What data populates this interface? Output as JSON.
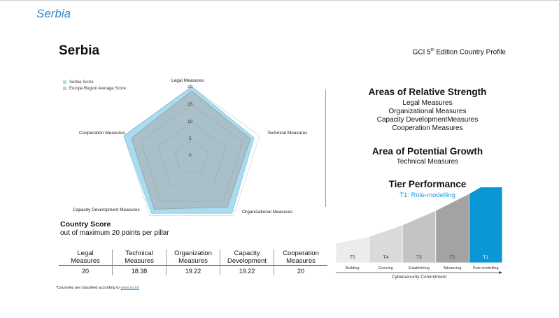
{
  "header": {
    "title": "Serbia"
  },
  "page_title": "Serbia",
  "profile": {
    "prefix": "GCI 5",
    "sup": "th",
    "suffix": " Edition Country Profile"
  },
  "chart_data": {
    "type": "radar",
    "axes": [
      "Legal Measures",
      "Technical Measures",
      "Organizational Measures",
      "Capacity Development Measures",
      "Cooperation Measures"
    ],
    "rlim": [
      0,
      20
    ],
    "ticks": [
      "0",
      "5",
      "10",
      "15",
      "20"
    ],
    "series": [
      {
        "name": "Serbia Score",
        "values": [
          20,
          18.38,
          19.22,
          19.22,
          20
        ],
        "color": "#a8dcf0"
      },
      {
        "name": "Europe Region Average Score",
        "values": [
          18.8,
          17.3,
          17.0,
          17.8,
          17.8
        ],
        "color": "#a9a9a9"
      }
    ]
  },
  "country_score": {
    "title": "Country Score",
    "subtitle": "out of maximum 20 points per pillar"
  },
  "score_table": {
    "headers": [
      [
        "Legal",
        "Measures"
      ],
      [
        "Technical",
        "Measures"
      ],
      [
        "Organization",
        "Measures"
      ],
      [
        "Capacity",
        "Development"
      ],
      [
        "Cooperation",
        "Measures"
      ]
    ],
    "values": [
      "20",
      "18.38",
      "19.22",
      "19.22",
      "20"
    ]
  },
  "footnote": {
    "text": "*Countries are classified according to ",
    "link": "www.itu.int"
  },
  "strength": {
    "title": "Areas of Relative Strength",
    "items": [
      "Legal Measures",
      "Organizational Measures",
      "Capacity DevelopmentMeasures",
      "Cooperation Measures"
    ]
  },
  "growth": {
    "title": "Area of Potential Growth",
    "items": [
      "Technical Measures"
    ]
  },
  "tier": {
    "title": "Tier Performance",
    "subtitle": "T1: Role-modelling",
    "tiers": [
      {
        "code": "T5",
        "name": "Building",
        "color": "#ececec"
      },
      {
        "code": "T4",
        "name": "Evolving",
        "color": "#dadada"
      },
      {
        "code": "T3",
        "name": "Establishing",
        "color": "#c4c4c4"
      },
      {
        "code": "T2",
        "name": "Advancing",
        "color": "#a3a3a3"
      },
      {
        "code": "T1",
        "name": "Role-modelling",
        "color": "#0a97d6"
      }
    ],
    "axis_label": "Cybersecurity Commitment"
  }
}
